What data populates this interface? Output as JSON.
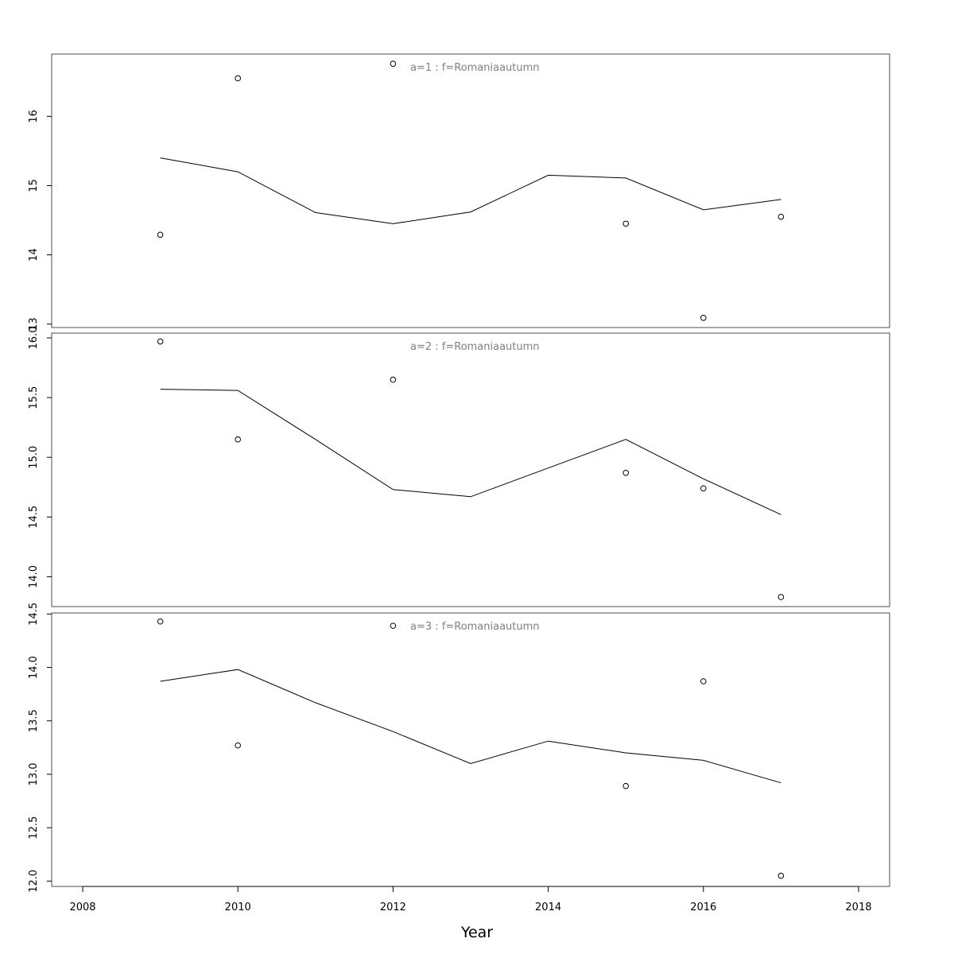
{
  "chart_data": {
    "type": "line",
    "xlabel": "Year",
    "xlim": [
      2007.6,
      2018.4
    ],
    "x_ticks": [
      2008,
      2010,
      2012,
      2014,
      2016,
      2018
    ],
    "x_tick_labels": [
      "2008",
      "2010",
      "2012",
      "2014",
      "2016",
      "2018"
    ],
    "x": [
      2009,
      2010,
      2011,
      2012,
      2013,
      2014,
      2015,
      2016,
      2017
    ],
    "panels": [
      {
        "label": "a=1  :  f=Romaniaautumn",
        "ylim": [
          12.95,
          16.9
        ],
        "y_ticks": [
          13,
          14,
          15,
          16
        ],
        "y_tick_labels": [
          "13",
          "14",
          "15",
          "16"
        ],
        "series": [
          {
            "type": "line",
            "x": [
              2009,
              2010,
              2011,
              2012,
              2013,
              2014,
              2015,
              2016,
              2017
            ],
            "values": [
              15.4,
              15.2,
              14.61,
              14.45,
              14.62,
              15.15,
              15.11,
              14.65,
              14.8
            ]
          },
          {
            "type": "scatter",
            "x": [
              2009,
              2010,
              2012,
              2015,
              2016,
              2017
            ],
            "values": [
              14.29,
              16.55,
              16.76,
              14.45,
              13.09,
              14.55
            ]
          }
        ]
      },
      {
        "label": "a=2  :  f=Romaniaautumn",
        "ylim": [
          13.75,
          16.04
        ],
        "y_ticks": [
          14.0,
          14.5,
          15.0,
          15.5,
          16.0
        ],
        "y_tick_labels": [
          "14.0",
          "14.5",
          "15.0",
          "15.5",
          "16.0"
        ],
        "series": [
          {
            "type": "line",
            "x": [
              2009,
              2010,
              2011,
              2012,
              2013,
              2014,
              2015,
              2016,
              2017
            ],
            "values": [
              15.57,
              15.56,
              15.15,
              14.73,
              14.67,
              14.91,
              15.15,
              14.82,
              14.52
            ]
          },
          {
            "type": "scatter",
            "x": [
              2009,
              2010,
              2012,
              2015,
              2016,
              2017
            ],
            "values": [
              15.97,
              15.15,
              15.65,
              14.87,
              14.74,
              13.83
            ]
          }
        ]
      },
      {
        "label": "a=3  :  f=Romaniaautumn",
        "ylim": [
          11.95,
          14.51
        ],
        "y_ticks": [
          12.0,
          12.5,
          13.0,
          13.5,
          14.0,
          14.5
        ],
        "y_tick_labels": [
          "12.0",
          "12.5",
          "13.0",
          "13.5",
          "14.0",
          "14.5"
        ],
        "series": [
          {
            "type": "line",
            "x": [
              2009,
              2010,
              2011,
              2012,
              2013,
              2014,
              2015,
              2016,
              2017
            ],
            "values": [
              13.87,
              13.98,
              13.67,
              13.4,
              13.1,
              13.31,
              13.2,
              13.13,
              12.92
            ]
          },
          {
            "type": "scatter",
            "x": [
              2009,
              2010,
              2012,
              2015,
              2016,
              2017
            ],
            "values": [
              14.43,
              13.27,
              14.39,
              12.89,
              13.87,
              12.05
            ]
          }
        ]
      }
    ]
  }
}
